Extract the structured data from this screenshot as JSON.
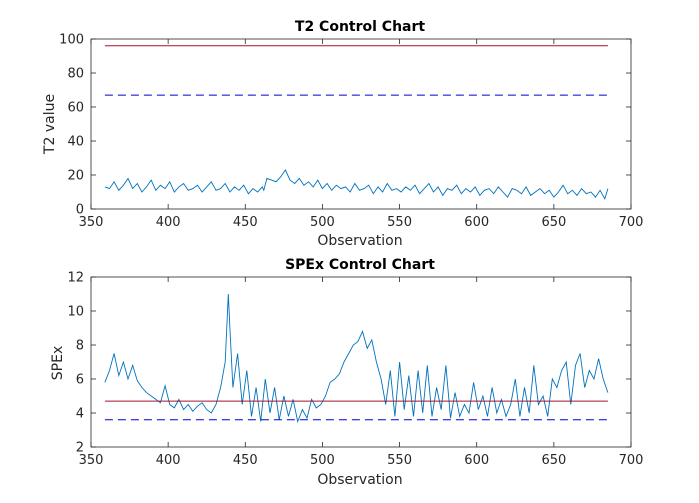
{
  "chart_data": [
    {
      "type": "line",
      "title": "T2 Control Chart",
      "xlabel": "Observation",
      "ylabel": "T2 value",
      "xlim": [
        350,
        700
      ],
      "ylim": [
        0,
        100
      ],
      "xticks": [
        350,
        400,
        450,
        500,
        550,
        600,
        650,
        700
      ],
      "yticks": [
        0,
        20,
        40,
        60,
        80,
        100
      ],
      "series": [
        {
          "role": "statistic",
          "color": "#0072BD",
          "x": [
            359,
            362,
            365,
            368,
            371,
            374,
            377,
            380,
            383,
            386,
            389,
            392,
            395,
            398,
            401,
            404,
            407,
            410,
            413,
            416,
            419,
            422,
            425,
            428,
            431,
            434,
            437,
            440,
            443,
            446,
            449,
            452,
            455,
            458,
            461,
            462,
            464,
            467,
            470,
            473,
            476,
            479,
            482,
            485,
            488,
            491,
            494,
            497,
            500,
            503,
            506,
            509,
            512,
            515,
            518,
            521,
            524,
            527,
            530,
            533,
            536,
            539,
            542,
            545,
            548,
            551,
            554,
            557,
            560,
            563,
            566,
            569,
            572,
            575,
            578,
            581,
            584,
            587,
            590,
            593,
            596,
            599,
            602,
            605,
            608,
            611,
            614,
            617,
            620,
            623,
            626,
            629,
            632,
            635,
            638,
            641,
            644,
            647,
            650,
            653,
            656,
            659,
            662,
            665,
            668,
            671,
            674,
            677,
            680,
            683,
            685
          ],
          "y": [
            13,
            12,
            16,
            11,
            14,
            18,
            12,
            15,
            10,
            13,
            17,
            11,
            14,
            12,
            16,
            10,
            13,
            15,
            11,
            12,
            14,
            10,
            13,
            16,
            11,
            12,
            15,
            10,
            13,
            11,
            14,
            9,
            12,
            10,
            13,
            11,
            18,
            17,
            16,
            19,
            23,
            17,
            15,
            18,
            14,
            16,
            13,
            17,
            12,
            15,
            11,
            14,
            12,
            13,
            10,
            15,
            11,
            12,
            14,
            9,
            13,
            10,
            15,
            11,
            12,
            10,
            13,
            11,
            14,
            9,
            12,
            15,
            10,
            13,
            8,
            12,
            11,
            14,
            9,
            12,
            10,
            13,
            8,
            11,
            12,
            9,
            13,
            10,
            7,
            12,
            11,
            9,
            13,
            8,
            10,
            12,
            9,
            11,
            7,
            10,
            14,
            9,
            11,
            8,
            12,
            9,
            10,
            7,
            11,
            6,
            12
          ]
        },
        {
          "role": "upper-limit",
          "color": "#A2142F",
          "x": [
            359,
            685
          ],
          "y": [
            96,
            96
          ]
        },
        {
          "role": "warning-limit",
          "color": "#0000CC",
          "dashed": true,
          "x": [
            359,
            685
          ],
          "y": [
            67,
            67
          ]
        }
      ]
    },
    {
      "type": "line",
      "title": "SPEx Control Chart",
      "xlabel": "Observation",
      "ylabel": "SPEx",
      "xlim": [
        350,
        700
      ],
      "ylim": [
        2,
        12
      ],
      "xticks": [
        350,
        400,
        450,
        500,
        550,
        600,
        650,
        700
      ],
      "yticks": [
        2,
        4,
        6,
        8,
        10,
        12
      ],
      "series": [
        {
          "role": "statistic",
          "color": "#0072BD",
          "x": [
            359,
            362,
            365,
            368,
            371,
            374,
            377,
            380,
            383,
            386,
            389,
            392,
            395,
            398,
            401,
            404,
            407,
            410,
            413,
            416,
            419,
            422,
            425,
            428,
            431,
            434,
            437,
            439,
            440,
            442,
            445,
            448,
            451,
            454,
            457,
            460,
            463,
            466,
            469,
            472,
            475,
            478,
            481,
            484,
            487,
            490,
            493,
            496,
            499,
            502,
            505,
            508,
            511,
            514,
            517,
            520,
            523,
            526,
            529,
            532,
            535,
            538,
            541,
            544,
            547,
            550,
            553,
            556,
            559,
            562,
            565,
            568,
            571,
            574,
            577,
            580,
            583,
            586,
            589,
            592,
            595,
            598,
            601,
            604,
            607,
            610,
            613,
            616,
            619,
            622,
            625,
            628,
            631,
            634,
            637,
            640,
            643,
            646,
            649,
            652,
            655,
            658,
            661,
            664,
            667,
            670,
            673,
            676,
            679,
            682,
            685
          ],
          "y": [
            5.8,
            6.5,
            7.5,
            6.2,
            7.0,
            6.0,
            6.8,
            5.9,
            5.5,
            5.2,
            5.0,
            4.8,
            4.6,
            5.6,
            4.5,
            4.3,
            4.8,
            4.2,
            4.5,
            4.1,
            4.4,
            4.6,
            4.2,
            4.0,
            4.5,
            5.5,
            7.0,
            11.0,
            9.0,
            5.5,
            7.5,
            4.5,
            6.5,
            3.8,
            5.5,
            3.5,
            6.0,
            4.0,
            5.5,
            3.6,
            5.0,
            3.8,
            4.8,
            3.5,
            4.2,
            3.7,
            4.8,
            4.3,
            4.5,
            5.0,
            5.8,
            6.0,
            6.3,
            7.0,
            7.5,
            8.0,
            8.2,
            8.8,
            7.8,
            8.3,
            7.0,
            6.0,
            4.5,
            6.5,
            3.8,
            7.0,
            4.2,
            6.2,
            3.8,
            6.5,
            4.0,
            6.8,
            3.8,
            5.5,
            4.2,
            6.8,
            3.7,
            5.2,
            3.8,
            4.5,
            4.0,
            5.8,
            4.2,
            5.0,
            3.8,
            5.5,
            4.0,
            4.8,
            3.8,
            4.5,
            6.0,
            3.8,
            5.5,
            4.0,
            6.8,
            4.5,
            5.0,
            3.8,
            6.0,
            5.5,
            6.5,
            7.0,
            4.5,
            6.8,
            7.5,
            5.5,
            6.5,
            6.0,
            7.2,
            6.0,
            5.2
          ]
        },
        {
          "role": "upper-limit",
          "color": "#A2142F",
          "x": [
            359,
            685
          ],
          "y": [
            4.7,
            4.7
          ]
        },
        {
          "role": "warning-limit",
          "color": "#0000CC",
          "dashed": true,
          "x": [
            359,
            685
          ],
          "y": [
            3.6,
            3.6
          ]
        }
      ]
    }
  ]
}
